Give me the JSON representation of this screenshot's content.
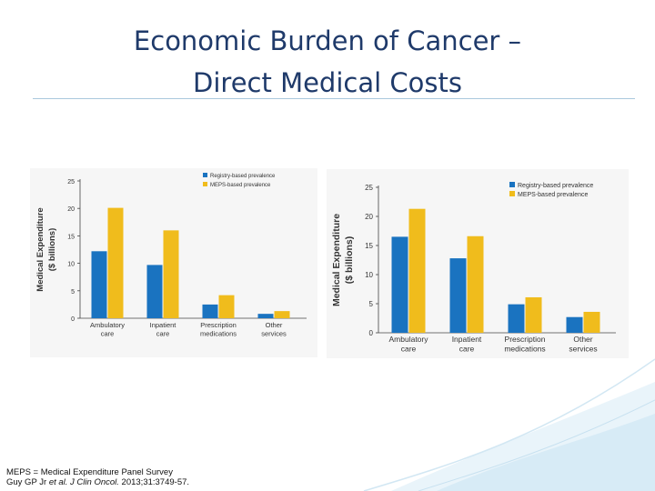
{
  "slide": {
    "title_line1": "Economic Burden of Cancer –",
    "title_line2": "Direct Medical Costs"
  },
  "footnote": {
    "line1": "MEPS = Medical Expenditure Panel Survey",
    "citation_authors": "Guy GP Jr ",
    "citation_etal": "et al. J Clin Oncol.",
    "citation_rest": " 2013;31:3749-57."
  },
  "colors": {
    "title": "#1f3a6a",
    "registry": "#1a73c0",
    "meps": "#f0bc1c",
    "decoration": "#cfe5f2"
  },
  "chart_data": [
    {
      "type": "bar",
      "categories": [
        [
          "Ambulatory",
          "care"
        ],
        [
          "Inpatient",
          "care"
        ],
        [
          "Prescription",
          "medications"
        ],
        [
          "Other",
          "services"
        ]
      ],
      "series": [
        {
          "name": "Registry-based prevalence",
          "color": "#1a73c0",
          "values": [
            12.2,
            9.7,
            2.5,
            0.8
          ]
        },
        {
          "name": "MEPS-based prevalence",
          "color": "#f0bc1c",
          "values": [
            20.1,
            16.0,
            4.2,
            1.3
          ]
        }
      ],
      "ylabel": [
        "Medical Expenditure",
        "($ billions)"
      ],
      "ylim": [
        0,
        25
      ],
      "yticks": [
        0,
        5,
        10,
        15,
        20,
        25
      ],
      "legend": "top-right",
      "grid": false
    },
    {
      "type": "bar",
      "categories": [
        [
          "Ambulatory",
          "care"
        ],
        [
          "Inpatient",
          "care"
        ],
        [
          "Prescription",
          "medications"
        ],
        [
          "Other",
          "services"
        ]
      ],
      "series": [
        {
          "name": "Registry-based prevalence",
          "color": "#1a73c0",
          "values": [
            16.5,
            12.8,
            4.9,
            2.7
          ]
        },
        {
          "name": "MEPS-based prevalence",
          "color": "#f0bc1c",
          "values": [
            21.3,
            16.6,
            6.1,
            3.6
          ]
        }
      ],
      "ylabel": [
        "Medical Expenditure",
        "($ billions)"
      ],
      "ylim": [
        0,
        25
      ],
      "yticks": [
        0,
        5,
        10,
        15,
        20,
        25
      ],
      "legend": "top-right",
      "grid": false
    }
  ]
}
